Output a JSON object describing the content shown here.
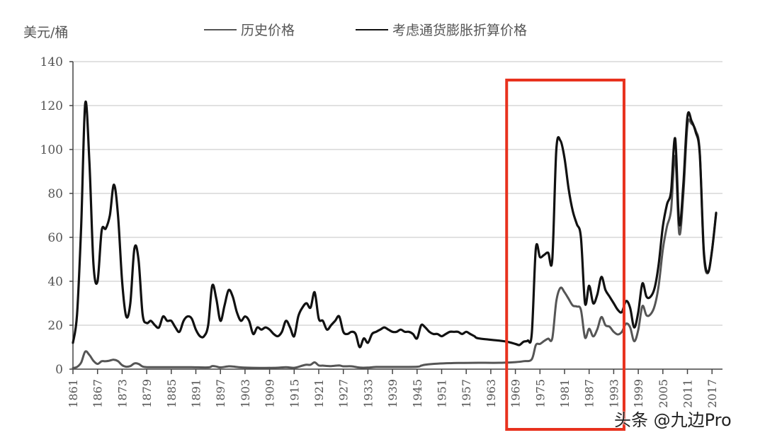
{
  "header": {
    "unit_label": "美元/桶",
    "legend": [
      {
        "label": "历史价格",
        "color": "#555555"
      },
      {
        "label": "考虑通货膨胀折算价格",
        "color": "#111111"
      }
    ]
  },
  "watermark": "头条 @九边Pro",
  "highlight": {
    "from_year": 1966,
    "to_year": 1995,
    "color": "#e8321e",
    "y_top": 113
  },
  "chart_data": {
    "type": "line",
    "title": "",
    "xlabel": "",
    "ylabel": "美元/桶",
    "ylim": [
      0,
      140
    ],
    "yticks": [
      0,
      20,
      40,
      60,
      80,
      100,
      120,
      140
    ],
    "xticks": [
      1861,
      1867,
      1873,
      1879,
      1885,
      1891,
      1897,
      1903,
      1909,
      1915,
      1921,
      1927,
      1933,
      1939,
      1945,
      1951,
      1957,
      1963,
      1969,
      1975,
      1981,
      1987,
      1993,
      1999,
      2005,
      2011,
      2017
    ],
    "xlim": [
      1861,
      2018
    ],
    "grid": "horizontal",
    "legend_position": "top",
    "series": [
      {
        "name": "历史价格",
        "color": "#555555",
        "points": [
          [
            1861,
            0.5
          ],
          [
            1862,
            1.0
          ],
          [
            1863,
            3
          ],
          [
            1864,
            8
          ],
          [
            1865,
            6.5
          ],
          [
            1866,
            3.8
          ],
          [
            1867,
            2.4
          ],
          [
            1868,
            3.6
          ],
          [
            1869,
            3.6
          ],
          [
            1870,
            3.9
          ],
          [
            1871,
            4.3
          ],
          [
            1872,
            3.6
          ],
          [
            1873,
            1.8
          ],
          [
            1874,
            1.1
          ],
          [
            1875,
            1.4
          ],
          [
            1876,
            2.6
          ],
          [
            1877,
            2.4
          ],
          [
            1878,
            1.2
          ],
          [
            1879,
            0.9
          ],
          [
            1880,
            0.9
          ],
          [
            1885,
            0.9
          ],
          [
            1890,
            0.9
          ],
          [
            1894,
            0.8
          ],
          [
            1895,
            1.4
          ],
          [
            1896,
            1.2
          ],
          [
            1897,
            0.8
          ],
          [
            1899,
            1.3
          ],
          [
            1900,
            1.2
          ],
          [
            1902,
            0.8
          ],
          [
            1905,
            0.6
          ],
          [
            1910,
            0.6
          ],
          [
            1913,
            0.9
          ],
          [
            1915,
            0.6
          ],
          [
            1917,
            1.6
          ],
          [
            1918,
            2
          ],
          [
            1919,
            2
          ],
          [
            1920,
            3.1
          ],
          [
            1921,
            1.7
          ],
          [
            1922,
            1.6
          ],
          [
            1924,
            1.4
          ],
          [
            1926,
            1.7
          ],
          [
            1927,
            1.3
          ],
          [
            1929,
            1.3
          ],
          [
            1931,
            0.7
          ],
          [
            1933,
            0.7
          ],
          [
            1935,
            1
          ],
          [
            1940,
            1
          ],
          [
            1945,
            1.1
          ],
          [
            1946,
            1.6
          ],
          [
            1947,
            2
          ],
          [
            1950,
            2.5
          ],
          [
            1955,
            2.8
          ],
          [
            1960,
            2.9
          ],
          [
            1965,
            2.9
          ],
          [
            1969,
            3.2
          ],
          [
            1971,
            3.6
          ],
          [
            1973,
            4.5
          ],
          [
            1974,
            11
          ],
          [
            1975,
            11.5
          ],
          [
            1976,
            12.8
          ],
          [
            1977,
            13.9
          ],
          [
            1978,
            14
          ],
          [
            1979,
            31
          ],
          [
            1980,
            37
          ],
          [
            1981,
            35
          ],
          [
            1982,
            32
          ],
          [
            1983,
            29
          ],
          [
            1984,
            28.5
          ],
          [
            1985,
            27
          ],
          [
            1986,
            14.4
          ],
          [
            1987,
            18.4
          ],
          [
            1988,
            14.9
          ],
          [
            1989,
            18.2
          ],
          [
            1990,
            23.7
          ],
          [
            1991,
            20
          ],
          [
            1992,
            19.3
          ],
          [
            1993,
            17
          ],
          [
            1994,
            15.8
          ],
          [
            1995,
            17
          ],
          [
            1996,
            20.7
          ],
          [
            1997,
            19.1
          ],
          [
            1998,
            12.7
          ],
          [
            1999,
            17.9
          ],
          [
            2000,
            28.7
          ],
          [
            2001,
            24.5
          ],
          [
            2002,
            25
          ],
          [
            2003,
            28.8
          ],
          [
            2004,
            38.3
          ],
          [
            2005,
            54.5
          ],
          [
            2006,
            65
          ],
          [
            2007,
            72.4
          ],
          [
            2008,
            97
          ],
          [
            2009,
            61.7
          ],
          [
            2010,
            79.5
          ],
          [
            2011,
            111
          ],
          [
            2012,
            111.7
          ],
          [
            2013,
            108.7
          ],
          [
            2014,
            99
          ],
          [
            2015,
            52.4
          ],
          [
            2016,
            43.7
          ],
          [
            2017,
            54.2
          ],
          [
            2018,
            71.3
          ]
        ]
      },
      {
        "name": "考虑通货膨胀折算价格",
        "color": "#111111",
        "points": [
          [
            1861,
            12
          ],
          [
            1862,
            25
          ],
          [
            1863,
            65
          ],
          [
            1864,
            121
          ],
          [
            1865,
            95
          ],
          [
            1866,
            48
          ],
          [
            1867,
            40
          ],
          [
            1868,
            63
          ],
          [
            1869,
            64
          ],
          [
            1870,
            70
          ],
          [
            1871,
            84
          ],
          [
            1872,
            70
          ],
          [
            1873,
            40
          ],
          [
            1874,
            24
          ],
          [
            1875,
            30
          ],
          [
            1876,
            55
          ],
          [
            1877,
            50
          ],
          [
            1878,
            25
          ],
          [
            1879,
            21
          ],
          [
            1880,
            22
          ],
          [
            1881,
            20
          ],
          [
            1882,
            19
          ],
          [
            1883,
            24
          ],
          [
            1884,
            22
          ],
          [
            1885,
            22
          ],
          [
            1886,
            19
          ],
          [
            1887,
            17
          ],
          [
            1888,
            22
          ],
          [
            1889,
            24
          ],
          [
            1890,
            23
          ],
          [
            1891,
            18
          ],
          [
            1892,
            15
          ],
          [
            1893,
            15
          ],
          [
            1894,
            20
          ],
          [
            1895,
            38
          ],
          [
            1896,
            32
          ],
          [
            1897,
            22
          ],
          [
            1898,
            29
          ],
          [
            1899,
            36
          ],
          [
            1900,
            33
          ],
          [
            1901,
            26
          ],
          [
            1902,
            22
          ],
          [
            1903,
            24
          ],
          [
            1904,
            22
          ],
          [
            1905,
            16
          ],
          [
            1906,
            19
          ],
          [
            1907,
            18
          ],
          [
            1908,
            19
          ],
          [
            1909,
            18
          ],
          [
            1910,
            16
          ],
          [
            1911,
            15
          ],
          [
            1912,
            17
          ],
          [
            1913,
            22
          ],
          [
            1914,
            19
          ],
          [
            1915,
            15
          ],
          [
            1916,
            24
          ],
          [
            1917,
            28
          ],
          [
            1918,
            30
          ],
          [
            1919,
            28
          ],
          [
            1920,
            35
          ],
          [
            1921,
            23
          ],
          [
            1922,
            22
          ],
          [
            1923,
            18
          ],
          [
            1924,
            20
          ],
          [
            1925,
            22
          ],
          [
            1926,
            24
          ],
          [
            1927,
            17
          ],
          [
            1928,
            16
          ],
          [
            1929,
            17
          ],
          [
            1930,
            16
          ],
          [
            1931,
            10
          ],
          [
            1932,
            14
          ],
          [
            1933,
            12
          ],
          [
            1934,
            16
          ],
          [
            1935,
            17
          ],
          [
            1936,
            18
          ],
          [
            1937,
            19
          ],
          [
            1938,
            18
          ],
          [
            1939,
            17
          ],
          [
            1940,
            17
          ],
          [
            1941,
            18
          ],
          [
            1942,
            17
          ],
          [
            1943,
            17
          ],
          [
            1944,
            16
          ],
          [
            1945,
            14
          ],
          [
            1946,
            20
          ],
          [
            1947,
            19
          ],
          [
            1948,
            17
          ],
          [
            1949,
            16
          ],
          [
            1950,
            16
          ],
          [
            1951,
            15
          ],
          [
            1952,
            16
          ],
          [
            1953,
            17
          ],
          [
            1954,
            17
          ],
          [
            1955,
            17
          ],
          [
            1956,
            16
          ],
          [
            1957,
            17
          ],
          [
            1958,
            16
          ],
          [
            1959,
            15
          ],
          [
            1960,
            14
          ],
          [
            1965,
            13
          ],
          [
            1967,
            12.5
          ],
          [
            1969,
            11.5
          ],
          [
            1970,
            11
          ],
          [
            1971,
            12.5
          ],
          [
            1972,
            13
          ],
          [
            1973,
            16
          ],
          [
            1974,
            55
          ],
          [
            1975,
            51
          ],
          [
            1976,
            52
          ],
          [
            1977,
            53
          ],
          [
            1978,
            50
          ],
          [
            1979,
            100
          ],
          [
            1980,
            104
          ],
          [
            1981,
            96
          ],
          [
            1982,
            82
          ],
          [
            1983,
            72
          ],
          [
            1984,
            66
          ],
          [
            1985,
            60
          ],
          [
            1986,
            30
          ],
          [
            1987,
            38
          ],
          [
            1988,
            30
          ],
          [
            1989,
            34
          ],
          [
            1990,
            42
          ],
          [
            1991,
            36
          ],
          [
            1992,
            33
          ],
          [
            1993,
            30
          ],
          [
            1994,
            27
          ],
          [
            1995,
            26
          ],
          [
            1996,
            31
          ],
          [
            1997,
            28
          ],
          [
            1998,
            19
          ],
          [
            1999,
            26
          ],
          [
            2000,
            39
          ],
          [
            2001,
            33
          ],
          [
            2002,
            33
          ],
          [
            2003,
            37
          ],
          [
            2004,
            48
          ],
          [
            2005,
            65
          ],
          [
            2006,
            75
          ],
          [
            2007,
            81
          ],
          [
            2008,
            105
          ],
          [
            2009,
            66
          ],
          [
            2010,
            84
          ],
          [
            2011,
            115
          ],
          [
            2012,
            113
          ],
          [
            2013,
            108
          ],
          [
            2014,
            98
          ],
          [
            2015,
            54
          ],
          [
            2016,
            44
          ],
          [
            2017,
            54
          ],
          [
            2018,
            71
          ]
        ]
      }
    ]
  }
}
